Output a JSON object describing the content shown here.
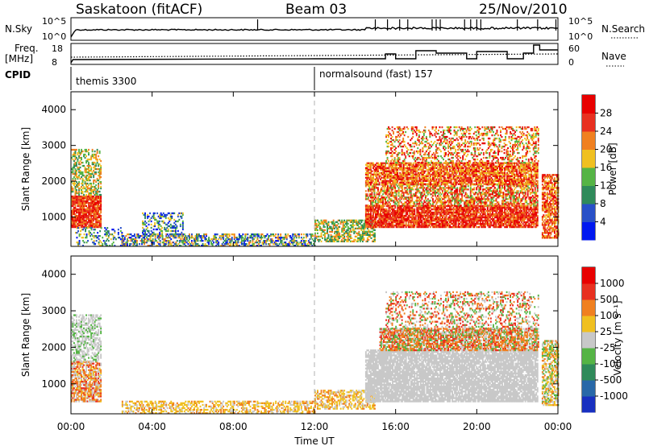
{
  "header": {
    "station": "Saskatoon (fitACF)",
    "beam": "Beam 03",
    "date": "25/Nov/2010"
  },
  "top_panels": {
    "nsky_label": "N.Sky",
    "nsearch_label": "N.Search",
    "freq_label_1": "Freq.",
    "freq_label_2": "[MHz]",
    "nave_label": "Nave",
    "cpid_label": "CPID",
    "nsky_ticks": [
      "10^5",
      "10^0"
    ],
    "nsearch_ticks": [
      "10^5",
      "10^0"
    ],
    "freq_ticks": [
      "18",
      "8"
    ],
    "nave_ticks": [
      "60",
      "0"
    ],
    "cpid_segments": [
      {
        "label": "themis 3300",
        "start": 0.0
      },
      {
        "label": "normalsound (fast) 157",
        "start": 12.0
      }
    ]
  },
  "chart_data": [
    {
      "type": "heatmap",
      "name": "power",
      "ylabel": "Slant Range [km]",
      "ylim": [
        180,
        4500
      ],
      "yticks": [
        "1000",
        "2000",
        "3000",
        "4000"
      ],
      "xlim": [
        0,
        24
      ],
      "colorbar": {
        "label": "Power [dB]",
        "ticks": [
          "4",
          "8",
          "12",
          "16",
          "20",
          "24",
          "28"
        ],
        "colors": [
          "#0018f0",
          "#2850c8",
          "#2f8a5a",
          "#55b445",
          "#f0c020",
          "#f08020",
          "#e83020",
          "#e80000"
        ]
      }
    },
    {
      "type": "heatmap",
      "name": "velocity",
      "ylabel": "Slant Range [km]",
      "ylim": [
        180,
        4500
      ],
      "yticks": [
        "1000",
        "2000",
        "3000",
        "4000"
      ],
      "xlim": [
        0,
        24
      ],
      "colorbar": {
        "label": "Velocity [m s⁻¹]",
        "ticks": [
          "1000",
          "500",
          "100",
          "25",
          "-25",
          "-100",
          "-500",
          "-1000"
        ],
        "colors": [
          "#1830c0",
          "#2868a8",
          "#2f8a5a",
          "#55b445",
          "#c8c8c8",
          "#f0c020",
          "#f08020",
          "#e83020",
          "#e80000"
        ]
      }
    }
  ],
  "xaxis": {
    "label": "Time UT",
    "ticks": [
      "00:00",
      "04:00",
      "08:00",
      "12:00",
      "16:00",
      "20:00",
      "00:00"
    ],
    "tick_hours": [
      0,
      4,
      8,
      12,
      16,
      20,
      24
    ]
  },
  "colors": {
    "grey_scatter": "#c8c8c8",
    "divider": "#b0b0b0"
  }
}
